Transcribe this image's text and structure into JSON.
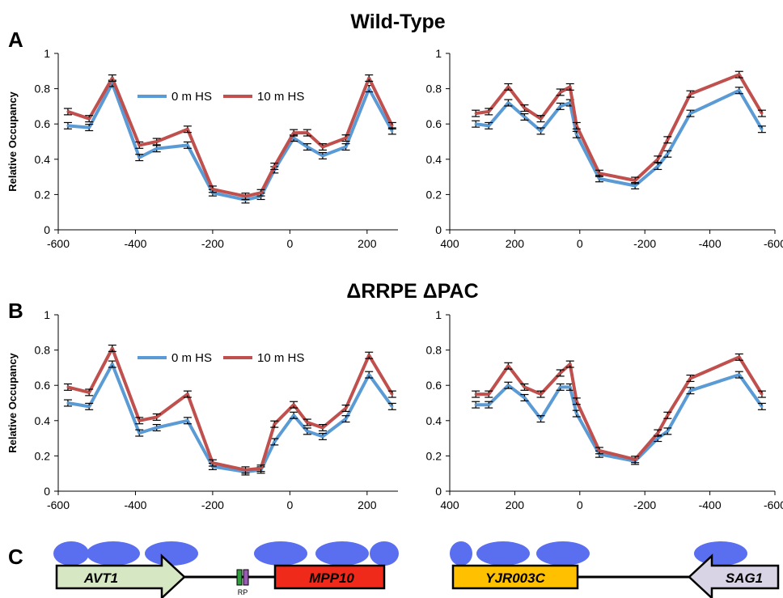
{
  "titles": {
    "top": "Wild-Type",
    "middle": "ΔRRPE ΔPAC"
  },
  "panel_labels": {
    "a": "A",
    "b": "B",
    "c": "C"
  },
  "colors": {
    "series0": "#5b9bd5",
    "series1": "#c0504d",
    "nucleosome": "#5a6ef0",
    "rp_box": "#2e9e3e",
    "rp_box2": "#9b59b6"
  },
  "chart_data": [
    {
      "type": "line",
      "panel": "A-left",
      "ylabel": "Relative Occupancy",
      "xlabel": "",
      "xlim": [
        -600,
        280
      ],
      "ylim": [
        0,
        1
      ],
      "xticks": [
        -600,
        -400,
        -200,
        0,
        200
      ],
      "yticks": [
        0,
        0.2,
        0.4,
        0.6,
        0.8,
        1
      ],
      "legend": "top-left",
      "x": [
        -575,
        -520,
        -460,
        -390,
        -345,
        -265,
        -200,
        -115,
        -75,
        -40,
        10,
        45,
        85,
        145,
        205,
        265
      ],
      "series": [
        {
          "name": "0 m HS",
          "color": "#5b9bd5",
          "values": [
            0.59,
            0.58,
            0.83,
            0.41,
            0.46,
            0.48,
            0.21,
            0.17,
            0.19,
            0.34,
            0.52,
            0.47,
            0.42,
            0.47,
            0.8,
            0.56
          ]
        },
        {
          "name": "10 m HS",
          "color": "#c0504d",
          "values": [
            0.67,
            0.63,
            0.86,
            0.48,
            0.5,
            0.57,
            0.23,
            0.19,
            0.21,
            0.36,
            0.55,
            0.55,
            0.47,
            0.52,
            0.86,
            0.59
          ]
        }
      ]
    },
    {
      "type": "line",
      "panel": "A-right",
      "ylabel": "",
      "xlabel": "",
      "xlim": [
        400,
        -600
      ],
      "ylim": [
        0,
        1
      ],
      "xticks": [
        400,
        200,
        0,
        -200,
        -400,
        -600
      ],
      "yticks": [
        0,
        0.2,
        0.4,
        0.6,
        0.8,
        1
      ],
      "x": [
        320,
        280,
        220,
        170,
        120,
        60,
        30,
        10,
        -60,
        -170,
        -240,
        -270,
        -340,
        -490,
        -560
      ],
      "series": [
        {
          "name": "0 m HS",
          "color": "#5b9bd5",
          "values": [
            0.6,
            0.59,
            0.72,
            0.64,
            0.56,
            0.7,
            0.72,
            0.54,
            0.29,
            0.25,
            0.36,
            0.43,
            0.66,
            0.79,
            0.57
          ]
        },
        {
          "name": "10 m HS",
          "color": "#c0504d",
          "values": [
            0.66,
            0.67,
            0.81,
            0.69,
            0.63,
            0.78,
            0.81,
            0.59,
            0.32,
            0.28,
            0.4,
            0.51,
            0.77,
            0.88,
            0.66
          ]
        }
      ]
    },
    {
      "type": "line",
      "panel": "B-left",
      "ylabel": "Relative Occupancy",
      "xlabel": "",
      "xlim": [
        -600,
        280
      ],
      "ylim": [
        0,
        1
      ],
      "xticks": [
        -600,
        -400,
        -200,
        0,
        200
      ],
      "yticks": [
        0,
        0.2,
        0.4,
        0.6,
        0.8,
        1
      ],
      "legend": "top-left",
      "x": [
        -575,
        -520,
        -460,
        -390,
        -345,
        -265,
        -200,
        -115,
        -75,
        -40,
        10,
        45,
        85,
        145,
        205,
        265
      ],
      "series": [
        {
          "name": "0 m HS",
          "color": "#5b9bd5",
          "values": [
            0.5,
            0.48,
            0.72,
            0.33,
            0.36,
            0.4,
            0.14,
            0.11,
            0.12,
            0.28,
            0.43,
            0.34,
            0.31,
            0.41,
            0.66,
            0.48
          ]
        },
        {
          "name": "10 m HS",
          "color": "#c0504d",
          "values": [
            0.59,
            0.56,
            0.81,
            0.4,
            0.42,
            0.55,
            0.16,
            0.12,
            0.13,
            0.38,
            0.49,
            0.39,
            0.36,
            0.47,
            0.77,
            0.55
          ]
        }
      ]
    },
    {
      "type": "line",
      "panel": "B-right",
      "ylabel": "",
      "xlabel": "",
      "xlim": [
        400,
        -600
      ],
      "ylim": [
        0,
        1
      ],
      "xticks": [
        400,
        200,
        0,
        -200,
        -400,
        -600
      ],
      "yticks": [
        0,
        0.2,
        0.4,
        0.6,
        0.8,
        1
      ],
      "x": [
        320,
        280,
        220,
        170,
        120,
        60,
        30,
        10,
        -60,
        -170,
        -240,
        -270,
        -340,
        -490,
        -560
      ],
      "series": [
        {
          "name": "0 m HS",
          "color": "#5b9bd5",
          "values": [
            0.49,
            0.49,
            0.6,
            0.53,
            0.41,
            0.59,
            0.59,
            0.44,
            0.21,
            0.17,
            0.3,
            0.34,
            0.57,
            0.66,
            0.48
          ]
        },
        {
          "name": "10 m HS",
          "color": "#c0504d",
          "values": [
            0.55,
            0.55,
            0.71,
            0.59,
            0.55,
            0.67,
            0.72,
            0.51,
            0.23,
            0.18,
            0.33,
            0.43,
            0.64,
            0.76,
            0.55
          ]
        }
      ]
    }
  ],
  "diagram_left": {
    "genes": [
      {
        "name": "AVT1",
        "fill": "#d6e7c3",
        "direction": "right"
      },
      {
        "name": "MPP10",
        "fill": "#ef2a1a",
        "direction": "right"
      }
    ],
    "rp_label": "RP"
  },
  "diagram_right": {
    "genes": [
      {
        "name": "YJR003C",
        "fill": "#ffc000",
        "direction": "right"
      },
      {
        "name": "SAG1",
        "fill": "#d9d3e6",
        "direction": "left"
      }
    ]
  }
}
